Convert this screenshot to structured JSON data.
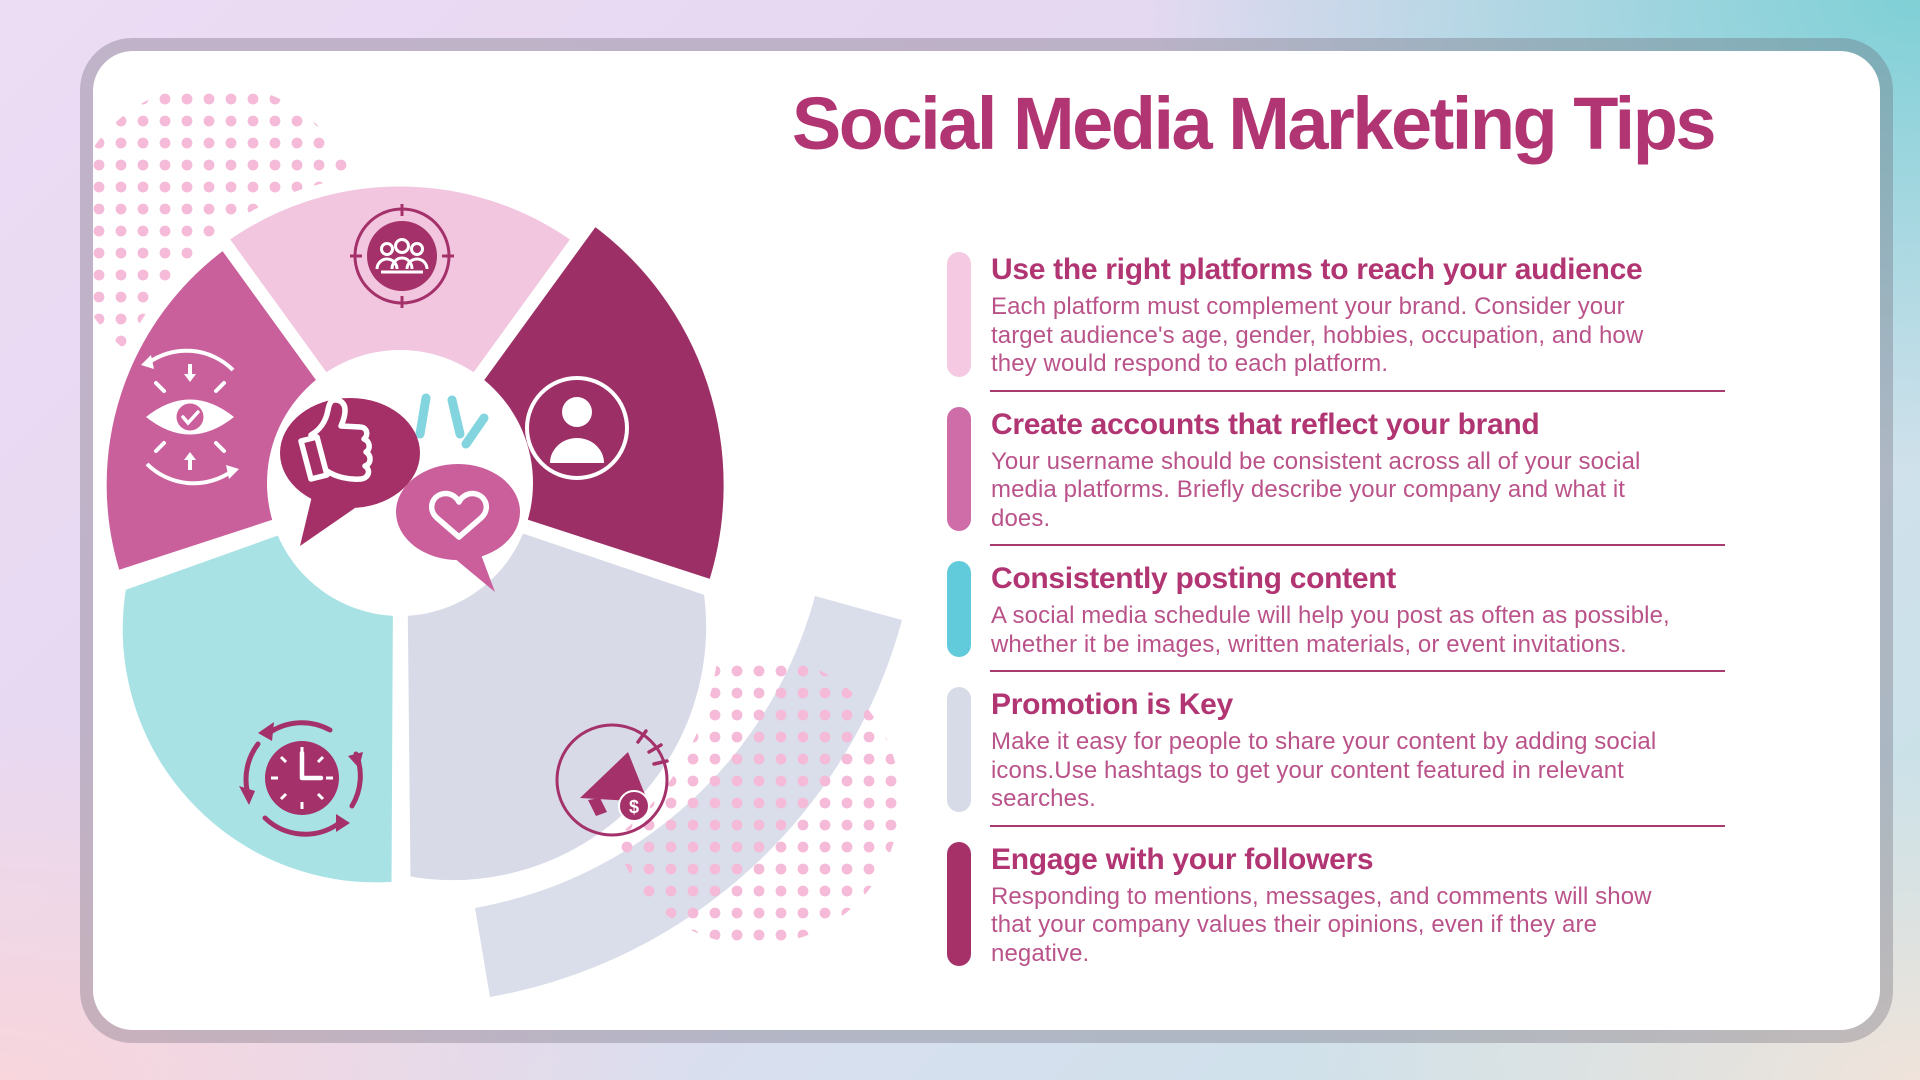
{
  "title": "Social Media Marketing Tips",
  "colors": {
    "title": "#b13572",
    "heading": "#b13572",
    "body": "#ba538a",
    "separator": "#a73a6f",
    "card_border": "rgba(104,96,112,0.32)",
    "dots": "#f4bad8",
    "swoosh": "#dadeea",
    "icon_magenta": "#a5316b",
    "sparkle_cyan": "#82d4de",
    "bubble_dark": "#a53067",
    "bubble_pink": "#ca5f9b"
  },
  "tips": [
    {
      "heading": "Use the right platforms to reach your audience",
      "body": "Each platform must complement your brand. Consider your target audience's age, gender, hobbies, occupation, and how they would respond to each platform.",
      "bar_color": "#f4c9e1"
    },
    {
      "heading": "Create accounts that reflect your brand",
      "body": "Your username should be consistent across all of your social media platforms. Briefly describe your company and what it does.",
      "bar_color": "#ce6da7"
    },
    {
      "heading": "Consistently posting content",
      "body": "A social media schedule will help you post as often as possible, whether it be images, written materials, or event invitations.",
      "bar_color": "#62cbdb"
    },
    {
      "heading": "Promotion is Key",
      "body": "Make it easy for people to share your content by adding social icons.Use hashtags to get your content featured in relevant searches.",
      "bar_color": "#d7dbe7"
    },
    {
      "heading": "Engage with your followers",
      "body": "Responding to mentions, messages, and comments will show that your company values their opinions, even if they are negative.",
      "bar_color": "#a63168"
    }
  ],
  "wheel": {
    "segments": [
      {
        "name": "audience",
        "icon": "audience-group-icon",
        "color": "#f2c6df"
      },
      {
        "name": "brand-vision",
        "icon": "brand-vision-eye-icon",
        "color": "#c9609c"
      },
      {
        "name": "profile",
        "icon": "profile-person-icon",
        "color": "#9c2f66"
      },
      {
        "name": "schedule",
        "icon": "schedule-clock-icon",
        "color": "#a8e2e5"
      },
      {
        "name": "promotion",
        "icon": "promotion-megaphone-icon",
        "color": "#d8dbe7"
      }
    ],
    "coin_symbol": "$",
    "center_icon": "like-and-heart-chat-bubbles-icon"
  }
}
